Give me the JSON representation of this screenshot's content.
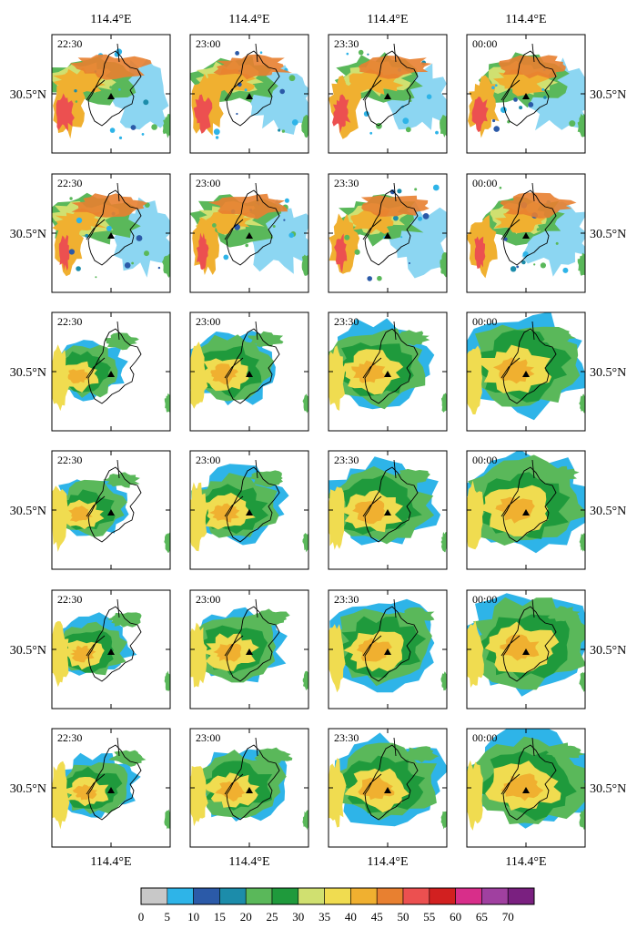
{
  "chart_data": {
    "type": "heatmap",
    "rows": 6,
    "columns": 4,
    "panel_times": [
      "22:30",
      "23:00",
      "23:30",
      "00:00"
    ],
    "lon_label": "114.4°E",
    "lat_label": "30.5°N",
    "station_marker": "triangle",
    "colorbar": {
      "ticks": [
        "0",
        "5",
        "10",
        "15",
        "20",
        "25",
        "30",
        "35",
        "40",
        "45",
        "50",
        "55",
        "60",
        "65",
        "70"
      ],
      "colors": [
        "#c8c8c8",
        "#2eb4e8",
        "#2b5aa8",
        "#1c8caa",
        "#5ab85a",
        "#1f9a3c",
        "#d0e070",
        "#f0dc50",
        "#f0b030",
        "#e88030",
        "#ec5050",
        "#d22020",
        "#d82e8a",
        "#a040a0",
        "#7a2080"
      ]
    }
  }
}
